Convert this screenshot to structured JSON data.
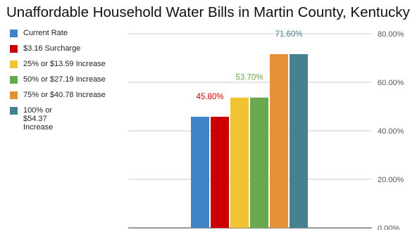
{
  "chart_data": {
    "type": "bar",
    "title": "Unaffordable Household Water Bills in Martin County, Kentucky",
    "xlabel": "",
    "ylabel": "",
    "ylim": [
      0,
      80
    ],
    "yticks": [
      "0.00%",
      "20.00%",
      "40.00%",
      "60.00%",
      "80.00%"
    ],
    "grid": true,
    "legend_position": "left",
    "series": [
      {
        "name": "Current Rate",
        "value": 45.8,
        "color": "#3d85c6",
        "data_label": ""
      },
      {
        "name": "$3.16 Surcharge",
        "value": 45.8,
        "color": "#cc0000",
        "data_label": "45.80%"
      },
      {
        "name": "25% or $13.59 Increase",
        "value": 53.7,
        "color": "#f1c232",
        "data_label": ""
      },
      {
        "name": "50% or $27.19 Increase",
        "value": 53.7,
        "color": "#6aa84f",
        "data_label": "53.70%"
      },
      {
        "name": "75% or $40.78 Increase",
        "value": 71.6,
        "color": "#e69138",
        "data_label": ""
      },
      {
        "name": "100% or $54.37 Increase",
        "value": 71.6,
        "color": "#45818e",
        "data_label": "71.60%"
      }
    ]
  }
}
